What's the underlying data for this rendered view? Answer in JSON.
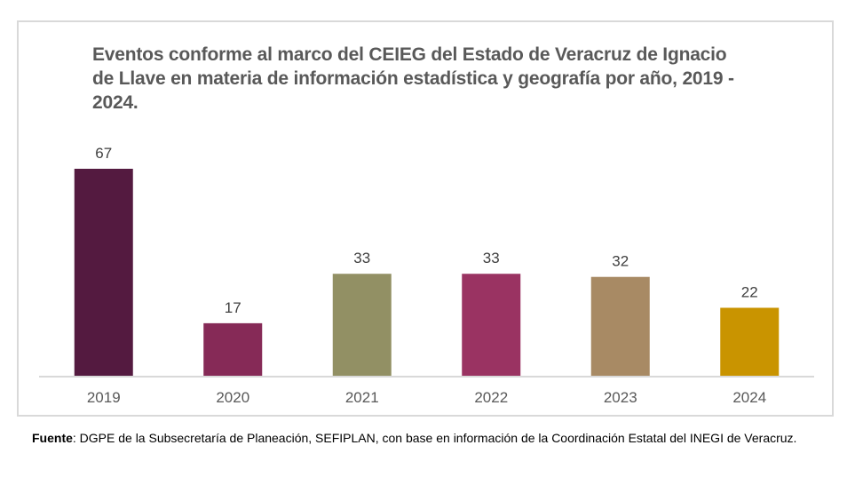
{
  "chart_data": {
    "type": "bar",
    "title": "Eventos conforme al marco del CEIEG del Estado de Veracruz de Ignacio de Llave en materia de información estadística y geografía por año, 2019 - 2024.",
    "categories": [
      "2019",
      "2020",
      "2021",
      "2022",
      "2023",
      "2024"
    ],
    "values": [
      67,
      17,
      33,
      33,
      32,
      22
    ],
    "colors": [
      "#541a40",
      "#862a57",
      "#929064",
      "#9a3362",
      "#a88a64",
      "#c99400"
    ],
    "xlabel": "",
    "ylabel": "",
    "ylim": [
      0,
      67
    ],
    "grid": false,
    "legend": "none",
    "data_labels": [
      "67",
      "17",
      "33",
      "33",
      "32",
      "22"
    ]
  },
  "source": {
    "label": "Fuente",
    "text": ": DGPE de la Subsecretaría de Planeación, SEFIPLAN, con base en información de la Coordinación Estatal del INEGI de Veracruz."
  }
}
